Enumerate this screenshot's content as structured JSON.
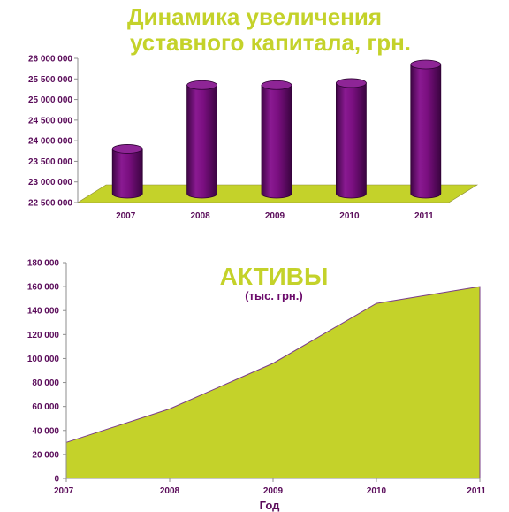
{
  "chart_data": [
    {
      "type": "bar",
      "style": "3d-cylinder",
      "title_line1": "Динамика увеличения",
      "title_line2": "уставного капитала, грн.",
      "categories": [
        "2007",
        "2008",
        "2009",
        "2010",
        "2011"
      ],
      "values": [
        23800000,
        25350000,
        25350000,
        25400000,
        25850000
      ],
      "ylim": [
        22500000,
        26000000
      ],
      "yticks": [
        22500000,
        23000000,
        23500000,
        24000000,
        24500000,
        25000000,
        25500000,
        26000000
      ],
      "ytick_labels": [
        "22 500 000",
        "23 000 000",
        "23 500 000",
        "24 000 000",
        "24 500 000",
        "25 000 000",
        "25 500 000",
        "26 000 000"
      ],
      "grid": false,
      "colors": {
        "bar": "#6a0b6e",
        "floor": "#c4d22a"
      }
    },
    {
      "type": "area",
      "title": "АКТИВЫ",
      "subtitle": "(тыс. грн.)",
      "xlabel": "Год",
      "x": [
        "2007",
        "2008",
        "2009",
        "2010",
        "2011"
      ],
      "values": [
        30000,
        58000,
        96000,
        146000,
        160000
      ],
      "ylim": [
        0,
        180000
      ],
      "yticks": [
        0,
        20000,
        40000,
        60000,
        80000,
        100000,
        120000,
        140000,
        160000,
        180000
      ],
      "ytick_labels": [
        "0",
        "20 000",
        "40 000",
        "60 000",
        "80 000",
        "100 000",
        "120 000",
        "140 000",
        "160 000",
        "180 000"
      ],
      "grid": false,
      "colors": {
        "fill": "#c4d22a",
        "line": "#7a3d8a"
      }
    }
  ]
}
